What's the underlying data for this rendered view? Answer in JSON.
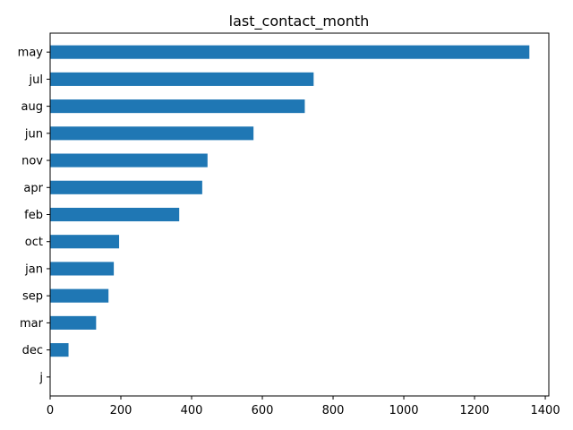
{
  "chart_data": {
    "type": "bar",
    "orientation": "horizontal",
    "title": "last_contact_month",
    "xlabel": "",
    "ylabel": "",
    "categories": [
      "may",
      "jul",
      "aug",
      "jun",
      "nov",
      "apr",
      "feb",
      "oct",
      "jan",
      "sep",
      "mar",
      "dec",
      "j"
    ],
    "values": [
      1355,
      745,
      720,
      575,
      445,
      430,
      365,
      195,
      180,
      165,
      130,
      52,
      0
    ],
    "xlim": [
      0,
      1410
    ],
    "xticks": [
      0,
      200,
      400,
      600,
      800,
      1000,
      1200,
      1400
    ],
    "grid": false,
    "bar_color": "#1f77b4"
  }
}
